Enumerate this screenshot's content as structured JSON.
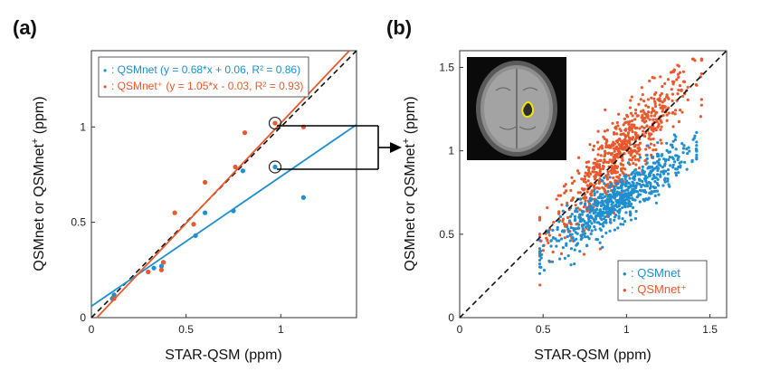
{
  "colors": {
    "qsmnet": "#1f8fd0",
    "qsmnet_plus": "#e8592d",
    "identity": "#111111",
    "arrow": "#000000"
  },
  "chart_data": [
    {
      "panel": "(a)",
      "type": "scatter",
      "xlabel": "STAR-QSM (ppm)",
      "ylabel_main": "QSMnet or QSMnet",
      "ylabel_sup": "+",
      "ylabel_tail": " (ppm)",
      "xlim": [
        0,
        1.4
      ],
      "ylim": [
        0,
        1.4
      ],
      "xticks": [
        0,
        0.5,
        1
      ],
      "xtick_labels": [
        "0",
        "0.5",
        "1"
      ],
      "yticks": [
        0,
        0.5,
        1
      ],
      "ytick_labels": [
        "0",
        "0.5",
        "1"
      ],
      "legend": [
        {
          "marker": "•",
          "label": ": QSMnet (y = 0.68*x + 0.06, R² = 0.86)"
        },
        {
          "marker": "•",
          "label": ": QSMnet⁺ (y = 1.05*x - 0.03, R² = 0.93)"
        }
      ],
      "series": [
        {
          "name": "QSMnet",
          "fit": {
            "slope": 0.68,
            "intercept": 0.06,
            "r2": 0.86
          },
          "points": [
            [
              0.11,
              0.1
            ],
            [
              0.12,
              0.12
            ],
            [
              0.3,
              0.24
            ],
            [
              0.33,
              0.26
            ],
            [
              0.37,
              0.27
            ],
            [
              0.38,
              0.29
            ],
            [
              0.55,
              0.43
            ],
            [
              0.6,
              0.55
            ],
            [
              0.75,
              0.56
            ],
            [
              0.8,
              0.77
            ],
            [
              0.97,
              0.79
            ],
            [
              1.12,
              0.63
            ]
          ]
        },
        {
          "name": "QSMnet⁺",
          "fit": {
            "slope": 1.05,
            "intercept": -0.03,
            "r2": 0.93
          },
          "points": [
            [
              0.12,
              0.1
            ],
            [
              0.3,
              0.24
            ],
            [
              0.37,
              0.25
            ],
            [
              0.38,
              0.29
            ],
            [
              0.44,
              0.55
            ],
            [
              0.54,
              0.49
            ],
            [
              0.6,
              0.71
            ],
            [
              0.76,
              0.79
            ],
            [
              0.81,
              0.97
            ],
            [
              0.97,
              1.02
            ],
            [
              1.12,
              1.0
            ]
          ]
        }
      ],
      "highlighted_points": [
        [
          0.97,
          1.02
        ],
        [
          0.97,
          0.79
        ]
      ]
    },
    {
      "panel": "(b)",
      "type": "scatter",
      "xlabel": "STAR-QSM (ppm)",
      "ylabel_main": "QSMnet or QSMnet",
      "ylabel_sup": "+",
      "ylabel_tail": " (ppm)",
      "xlim": [
        0,
        1.6
      ],
      "ylim": [
        0,
        1.6
      ],
      "xticks": [
        0,
        0.5,
        1,
        1.5
      ],
      "xtick_labels": [
        "0",
        "0.5",
        "1",
        "1.5"
      ],
      "yticks": [
        0,
        0.5,
        1,
        1.5
      ],
      "ytick_labels": [
        "0",
        "0.5",
        "1",
        "1.5"
      ],
      "legend": [
        {
          "marker": "•",
          "label": ": QSMnet"
        },
        {
          "marker": "•",
          "label": ": QSMnet⁺"
        }
      ],
      "series": [
        {
          "name": "QSMnet",
          "n_points": 700,
          "x_range": [
            0.48,
            1.42
          ],
          "trend": {
            "slope": 0.68,
            "intercept": 0.06
          },
          "spread": 0.07
        },
        {
          "name": "QSMnet⁺",
          "n_points": 700,
          "x_range": [
            0.48,
            1.45
          ],
          "trend": {
            "slope": 1.05,
            "intercept": -0.03
          },
          "spread": 0.11
        }
      ],
      "inset": "brain-slice-image"
    }
  ]
}
